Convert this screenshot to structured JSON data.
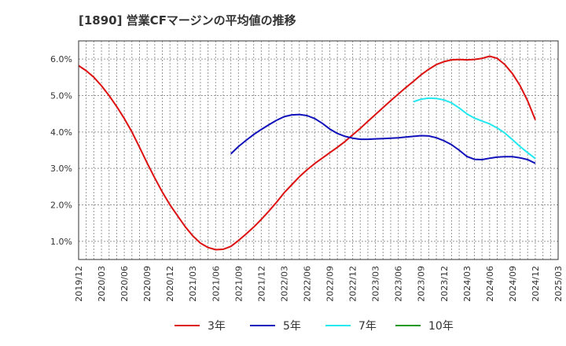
{
  "chart_data": {
    "type": "line",
    "title": "[1890]  営業CFマージンの平均値の推移",
    "xlabel": "",
    "ylabel": "",
    "ylim": [
      0.5,
      6.5
    ],
    "yticks": [
      "1.0%",
      "2.0%",
      "3.0%",
      "4.0%",
      "5.0%",
      "6.0%"
    ],
    "xticks": [
      "2019/12",
      "2020/03",
      "2020/06",
      "2020/09",
      "2020/12",
      "2021/03",
      "2021/06",
      "2021/09",
      "2021/12",
      "2022/03",
      "2022/06",
      "2022/09",
      "2022/12",
      "2023/03",
      "2023/06",
      "2023/09",
      "2023/12",
      "2024/03",
      "2024/06",
      "2024/09",
      "2024/12",
      "2025/03"
    ],
    "grid": true,
    "legend_position": "bottom",
    "series": [
      {
        "name": "3年",
        "color": "#dd1111",
        "x": [
          "2019/12",
          "2020/01",
          "2020/02",
          "2020/03",
          "2020/04",
          "2020/05",
          "2020/06",
          "2020/07",
          "2020/08",
          "2020/09",
          "2020/10",
          "2020/11",
          "2020/12",
          "2021/01",
          "2021/02",
          "2021/03",
          "2021/04",
          "2021/05",
          "2021/06",
          "2021/07",
          "2021/08",
          "2021/09",
          "2021/10",
          "2021/11",
          "2021/12",
          "2022/01",
          "2022/02",
          "2022/03",
          "2022/04",
          "2022/05",
          "2022/06",
          "2022/07",
          "2022/08",
          "2022/09",
          "2022/10",
          "2022/11",
          "2022/12",
          "2023/01",
          "2023/02",
          "2023/03",
          "2023/04",
          "2023/05",
          "2023/06",
          "2023/07",
          "2023/08",
          "2023/09",
          "2023/10",
          "2023/11",
          "2023/12",
          "2024/01",
          "2024/02",
          "2024/03",
          "2024/04",
          "2024/05",
          "2024/06",
          "2024/07",
          "2024/08",
          "2024/09",
          "2024/10",
          "2024/11",
          "2024/12"
        ],
        "values": [
          5.82,
          5.68,
          5.5,
          5.27,
          5.0,
          4.7,
          4.37,
          4.0,
          3.58,
          3.15,
          2.74,
          2.35,
          2.0,
          1.7,
          1.4,
          1.15,
          0.95,
          0.83,
          0.77,
          0.78,
          0.86,
          1.02,
          1.2,
          1.39,
          1.6,
          1.83,
          2.07,
          2.33,
          2.55,
          2.77,
          2.96,
          3.13,
          3.28,
          3.43,
          3.58,
          3.74,
          3.92,
          4.1,
          4.29,
          4.48,
          4.67,
          4.86,
          5.04,
          5.22,
          5.39,
          5.57,
          5.72,
          5.85,
          5.93,
          5.98,
          5.99,
          5.98,
          5.99,
          6.02,
          6.08,
          6.02,
          5.85,
          5.6,
          5.27,
          4.85,
          4.33
        ]
      },
      {
        "name": "5年",
        "color": "#1111bb",
        "x": [
          "2021/08",
          "2021/09",
          "2021/10",
          "2021/11",
          "2021/12",
          "2022/01",
          "2022/02",
          "2022/03",
          "2022/04",
          "2022/05",
          "2022/06",
          "2022/07",
          "2022/08",
          "2022/09",
          "2022/10",
          "2022/11",
          "2022/12",
          "2023/01",
          "2023/02",
          "2023/03",
          "2023/04",
          "2023/05",
          "2023/06",
          "2023/07",
          "2023/08",
          "2023/09",
          "2023/10",
          "2023/11",
          "2023/12",
          "2024/01",
          "2024/02",
          "2024/03",
          "2024/04",
          "2024/05",
          "2024/06",
          "2024/07",
          "2024/08",
          "2024/09",
          "2024/10",
          "2024/11",
          "2024/12"
        ],
        "values": [
          3.4,
          3.6,
          3.77,
          3.93,
          4.07,
          4.2,
          4.32,
          4.42,
          4.47,
          4.48,
          4.45,
          4.37,
          4.24,
          4.08,
          3.96,
          3.88,
          3.83,
          3.8,
          3.8,
          3.81,
          3.82,
          3.83,
          3.84,
          3.86,
          3.88,
          3.9,
          3.89,
          3.84,
          3.76,
          3.65,
          3.5,
          3.33,
          3.25,
          3.24,
          3.28,
          3.31,
          3.32,
          3.32,
          3.29,
          3.24,
          3.14
        ]
      },
      {
        "name": "7年",
        "color": "#22e8f0",
        "x": [
          "2023/08",
          "2023/09",
          "2023/10",
          "2023/11",
          "2023/12",
          "2024/01",
          "2024/02",
          "2024/03",
          "2024/04",
          "2024/05",
          "2024/06",
          "2024/07",
          "2024/08",
          "2024/09",
          "2024/10",
          "2024/11",
          "2024/12"
        ],
        "values": [
          4.83,
          4.9,
          4.93,
          4.92,
          4.88,
          4.8,
          4.66,
          4.5,
          4.38,
          4.3,
          4.22,
          4.11,
          3.97,
          3.79,
          3.6,
          3.43,
          3.27
        ]
      },
      {
        "name": "10年",
        "color": "#229922",
        "x": [],
        "values": []
      }
    ]
  }
}
